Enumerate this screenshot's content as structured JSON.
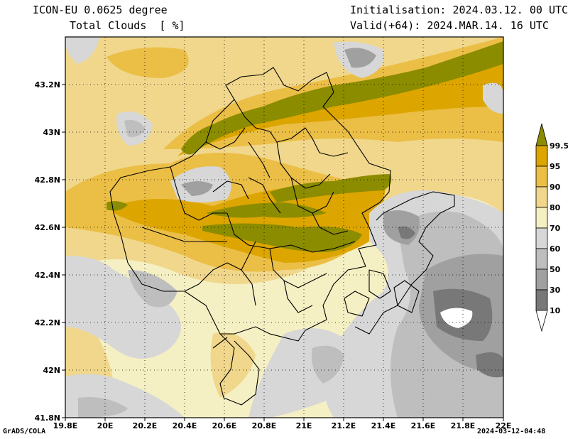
{
  "header": {
    "model": "ICON-EU 0.0625 degree",
    "field": "Total Clouds  [ %]",
    "init": "Initialisation: 2024.03.12. 00 UTC",
    "valid": "Valid(+64): 2024.MAR.14. 16 UTC"
  },
  "axes": {
    "lat_labels": [
      "43.2N",
      "43N",
      "42.8N",
      "42.6N",
      "42.4N",
      "42.2N",
      "42N",
      "41.8N"
    ],
    "lon_labels": [
      "19.8E",
      "20E",
      "20.2E",
      "20.4E",
      "20.6E",
      "20.8E",
      "21E",
      "21.2E",
      "21.4E",
      "21.6E",
      "21.8E",
      "22E"
    ]
  },
  "colorbar": {
    "labels": [
      "99.5",
      "95",
      "90",
      "80",
      "70",
      "60",
      "50",
      "30",
      "10"
    ],
    "colors": [
      "#8c8c00",
      "#dca500",
      "#ebbe46",
      "#f0d78c",
      "#f5f0c3",
      "#d7d7d7",
      "#bebebe",
      "#a0a0a0",
      "#787878",
      "#505050",
      "#ffffff"
    ]
  },
  "footer": {
    "left": "GrADS/COLA",
    "right": "2024-03-12-04:48"
  }
}
